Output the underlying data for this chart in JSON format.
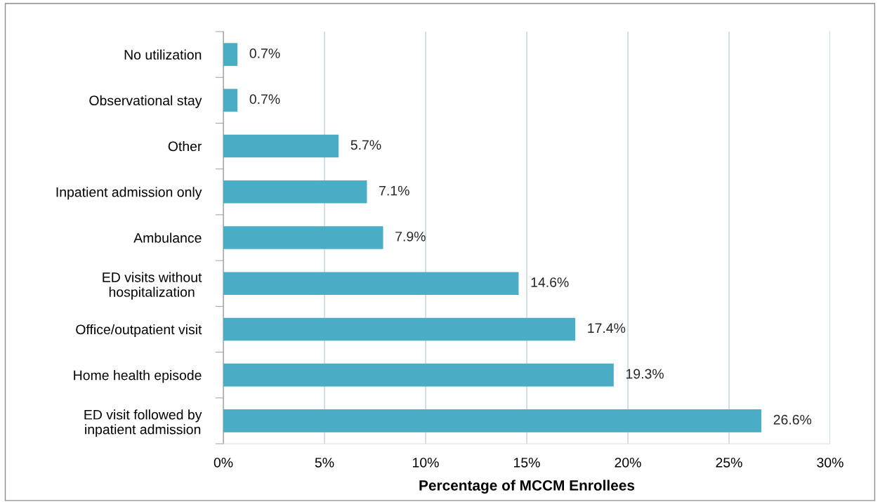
{
  "chart_data": {
    "type": "bar",
    "orientation": "horizontal",
    "xlabel": "Percentage of MCCM Enrollees",
    "categories": [
      "No utilization",
      "Observational stay",
      "Other",
      "Inpatient admission only",
      "Ambulance",
      "ED visits without\nhospitalization",
      "Office/outpatient visit",
      "Home health episode",
      "ED visit followed by\ninpatient admission"
    ],
    "values": [
      0.7,
      0.7,
      5.7,
      7.1,
      7.9,
      14.6,
      17.4,
      19.3,
      26.6
    ],
    "value_labels": [
      "0.7%",
      "0.7%",
      "5.7%",
      "7.1%",
      "7.9%",
      "14.6%",
      "17.4%",
      "19.3%",
      "26.6%"
    ],
    "color": "#4bacc6",
    "xlim": [
      0,
      30
    ],
    "xticks": [
      {
        "value": 0,
        "label": "0%"
      },
      {
        "value": 5,
        "label": "5%"
      },
      {
        "value": 10,
        "label": "10%"
      },
      {
        "value": 15,
        "label": "15%"
      },
      {
        "value": 20,
        "label": "20%"
      },
      {
        "value": 25,
        "label": "25%"
      },
      {
        "value": 30,
        "label": "30%"
      }
    ],
    "grid": "x",
    "legend": false
  }
}
